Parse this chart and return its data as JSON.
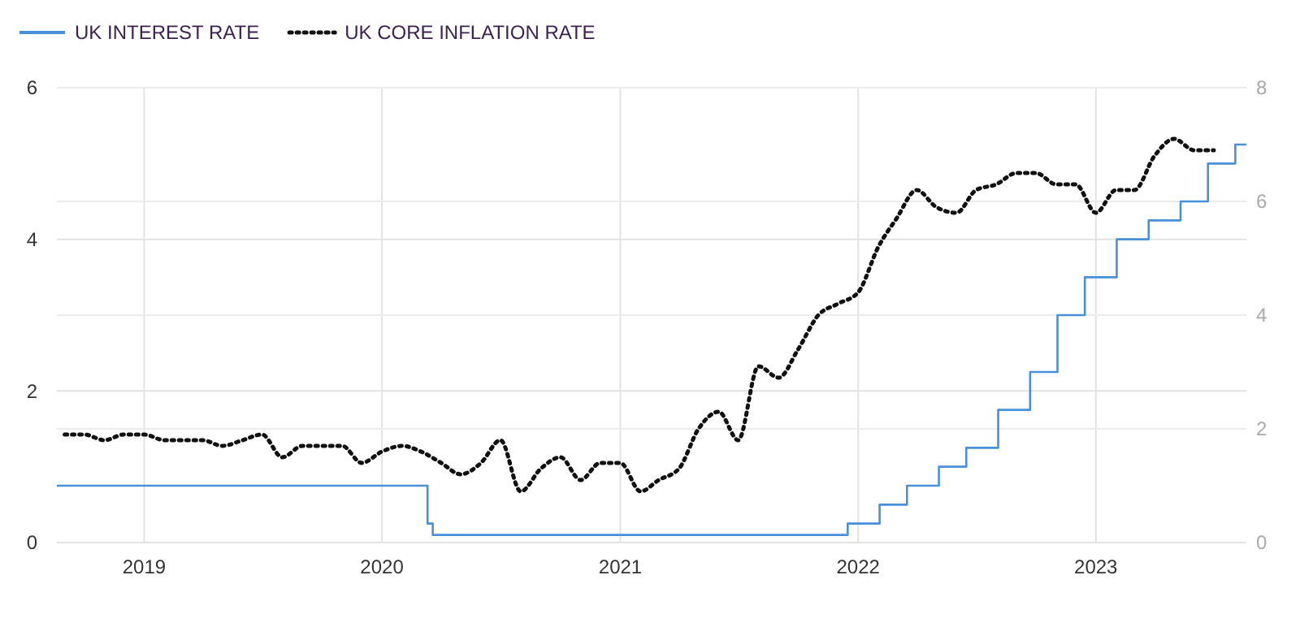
{
  "chart_data": {
    "type": "line",
    "xlim": [
      "2018-08-20",
      "2023-08-20"
    ],
    "xticks": [
      {
        "value": "2019-01-01",
        "label": "2019"
      },
      {
        "value": "2020-01-01",
        "label": "2020"
      },
      {
        "value": "2021-01-01",
        "label": "2021"
      },
      {
        "value": "2022-01-01",
        "label": "2022"
      },
      {
        "value": "2023-01-01",
        "label": "2023"
      }
    ],
    "ylim": [
      0,
      6
    ],
    "yticks": [
      0,
      2,
      4,
      6
    ],
    "y2lim": [
      0,
      8
    ],
    "y2ticks": [
      0,
      2,
      4,
      6,
      8
    ],
    "grid": true,
    "legend": "top left",
    "marker": "none",
    "series": [
      {
        "name": "UK INTEREST RATE",
        "type": "step",
        "color": "#4a90d9",
        "line_style": "solid",
        "x": [
          "2018-08-20",
          "2020-03-11",
          "2020-03-19",
          "2021-12-16",
          "2022-02-03",
          "2022-03-17",
          "2022-05-05",
          "2022-06-16",
          "2022-08-04",
          "2022-09-22",
          "2022-11-03",
          "2022-12-15",
          "2023-02-02",
          "2023-03-23",
          "2023-05-11",
          "2023-06-22",
          "2023-08-03",
          "2023-08-20"
        ],
        "values": [
          0.75,
          0.25,
          0.1,
          0.25,
          0.5,
          0.75,
          1,
          1.25,
          1.75,
          2.25,
          3,
          3.5,
          4,
          4.25,
          4.5,
          5,
          5.25,
          5.25
        ]
      },
      {
        "name": "UK CORE INFLATION RATE",
        "type": "line",
        "axis": "y2",
        "color": "#111111",
        "line_style": "dotted",
        "x": [
          "2018-09",
          "2018-10",
          "2018-11",
          "2018-12",
          "2019-01",
          "2019-02",
          "2019-03",
          "2019-04",
          "2019-05",
          "2019-06",
          "2019-07",
          "2019-08",
          "2019-09",
          "2019-10",
          "2019-11",
          "2019-12",
          "2020-01",
          "2020-02",
          "2020-03",
          "2020-04",
          "2020-05",
          "2020-06",
          "2020-07",
          "2020-08",
          "2020-09",
          "2020-10",
          "2020-11",
          "2020-12",
          "2021-01",
          "2021-02",
          "2021-03",
          "2021-04",
          "2021-05",
          "2021-06",
          "2021-07",
          "2021-08",
          "2021-09",
          "2021-10",
          "2021-11",
          "2021-12",
          "2022-01",
          "2022-02",
          "2022-03",
          "2022-04",
          "2022-05",
          "2022-06",
          "2022-07",
          "2022-08",
          "2022-09",
          "2022-10",
          "2022-11",
          "2022-12",
          "2023-01",
          "2023-02",
          "2023-03",
          "2023-04",
          "2023-05",
          "2023-06",
          "2023-07"
        ],
        "values": [
          1.9,
          1.9,
          1.8,
          1.9,
          1.9,
          1.8,
          1.8,
          1.8,
          1.7,
          1.8,
          1.9,
          1.5,
          1.7,
          1.7,
          1.7,
          1.4,
          1.6,
          1.7,
          1.6,
          1.4,
          1.2,
          1.4,
          1.8,
          0.9,
          1.3,
          1.5,
          1.1,
          1.4,
          1.4,
          0.9,
          1.1,
          1.3,
          2.0,
          2.3,
          1.8,
          3.1,
          2.9,
          3.4,
          4.0,
          4.2,
          4.4,
          5.2,
          5.7,
          6.2,
          5.9,
          5.8,
          6.2,
          6.3,
          6.5,
          6.5,
          6.3,
          6.3,
          5.8,
          6.2,
          6.2,
          6.8,
          7.1,
          6.9,
          6.9
        ]
      }
    ]
  }
}
